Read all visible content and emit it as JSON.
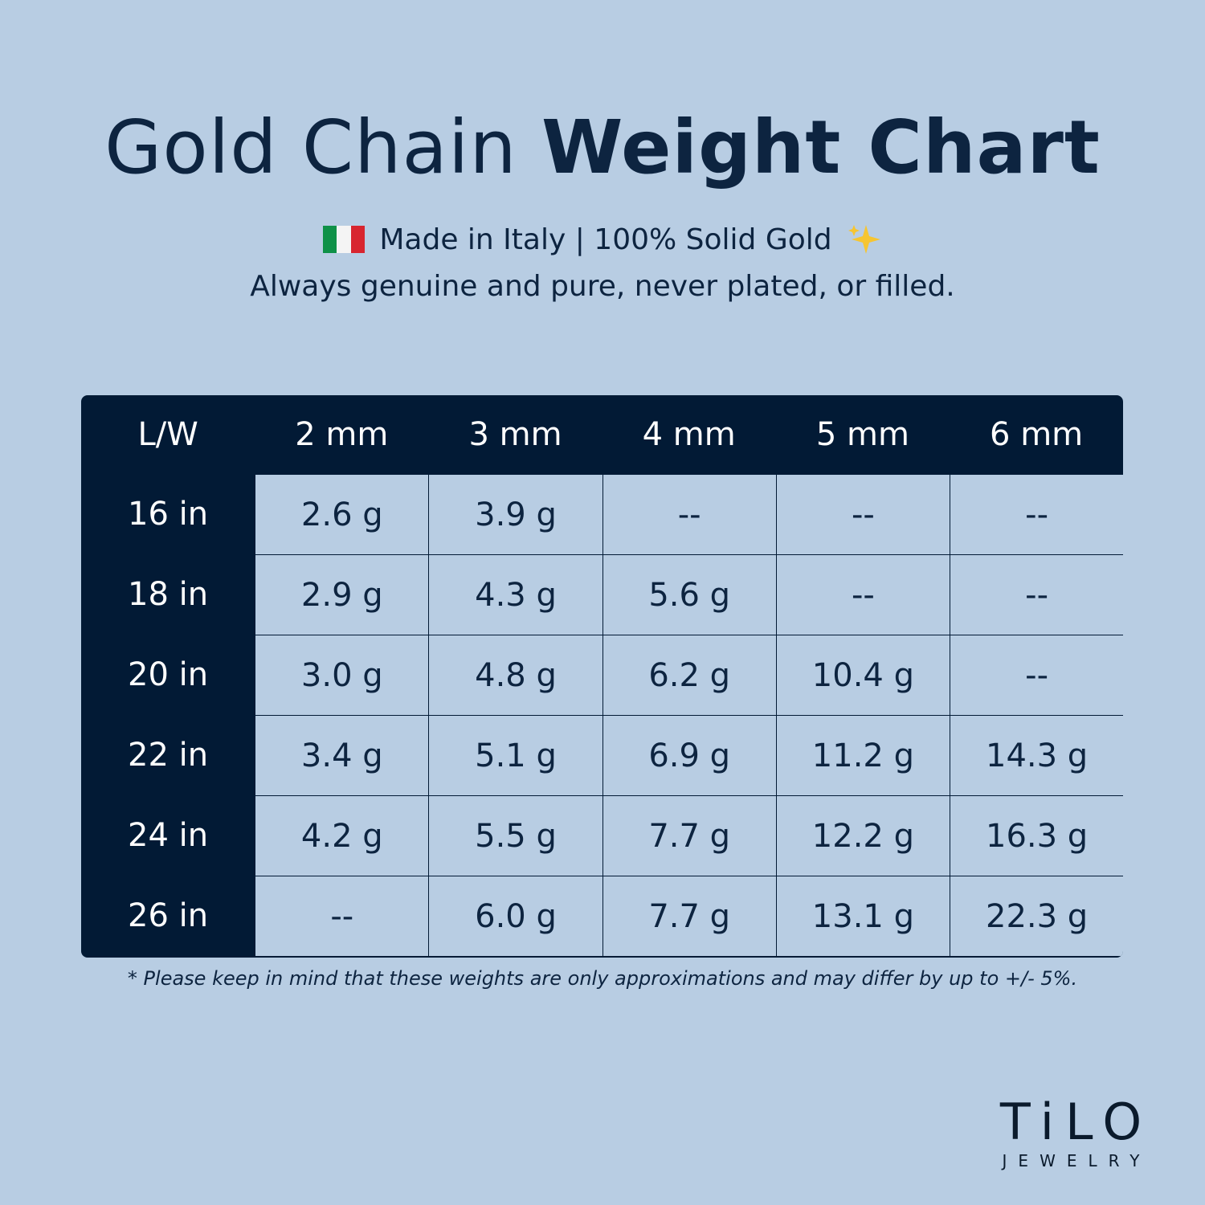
{
  "header": {
    "title_light": "Gold Chain",
    "title_bold": "Weight Chart",
    "subtitle": "Made in Italy | 100% Solid Gold",
    "tagline": "Always genuine and pure, never plated, or filled."
  },
  "table": {
    "columns": [
      "L/W",
      "2 mm",
      "3 mm",
      "4 mm",
      "5 mm",
      "6 mm"
    ],
    "rows": [
      [
        "16 in",
        "2.6 g",
        "3.9 g",
        "--",
        "--",
        "--"
      ],
      [
        "18 in",
        "2.9 g",
        "4.3 g",
        "5.6 g",
        "--",
        "--"
      ],
      [
        "20 in",
        "3.0 g",
        "4.8 g",
        "6.2 g",
        "10.4 g",
        "--"
      ],
      [
        "22 in",
        "3.4 g",
        "5.1 g",
        "6.9 g",
        "11.2 g",
        "14.3 g"
      ],
      [
        "24 in",
        "4.2 g",
        "5.5 g",
        "7.7 g",
        "12.2 g",
        "16.3 g"
      ],
      [
        "26 in",
        "--",
        "6.0 g",
        "7.7 g",
        "13.1 g",
        "22.3 g"
      ]
    ]
  },
  "footnote": "* Please keep in mind that these weights are only approximations and may differ by up to +/- 5%.",
  "logo": {
    "name": "TiLO",
    "tagline": "JEWELRY"
  }
}
